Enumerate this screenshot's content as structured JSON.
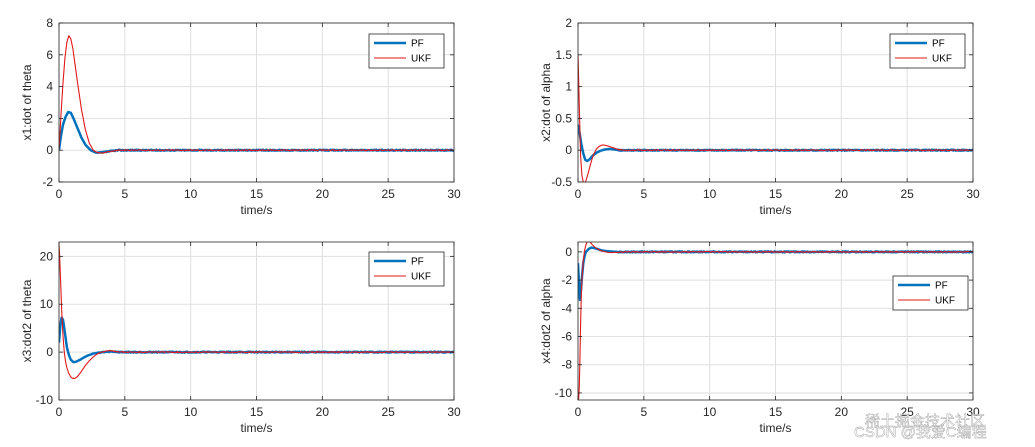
{
  "figure": {
    "watermark": "CSDN @我爱C编程",
    "watermark_secondary": "稀土掘金技术社区"
  },
  "chart_data": [
    {
      "id": "p1",
      "type": "line",
      "title": "",
      "xlabel": "time/s",
      "ylabel": "x1:dot of theta",
      "xlim": [
        0,
        30
      ],
      "ylim": [
        -2,
        8
      ],
      "xticks": [
        0,
        5,
        10,
        15,
        20,
        25,
        30
      ],
      "yticks": [
        -2,
        0,
        2,
        4,
        6,
        8
      ],
      "grid": true,
      "legend_position": "top-right",
      "series": [
        {
          "name": "PF",
          "color": "#0072BD",
          "width": 2.5,
          "x": [
            0,
            0.15,
            0.3,
            0.5,
            0.7,
            0.9,
            1.1,
            1.4,
            1.7,
            2.0,
            2.4,
            2.8,
            3.2,
            3.6,
            4.0,
            4.5,
            5.0,
            6.0,
            8.0,
            10.0,
            15.0,
            20.0,
            25.0,
            30.0
          ],
          "y": [
            0,
            0.9,
            1.6,
            2.1,
            2.4,
            2.35,
            2.0,
            1.4,
            0.8,
            0.35,
            0.0,
            -0.15,
            -0.15,
            -0.1,
            -0.05,
            0,
            0,
            0,
            0,
            0,
            0,
            0,
            0,
            0
          ]
        },
        {
          "name": "UKF",
          "color": "#E2171A",
          "width": 1.1,
          "x": [
            0,
            0.15,
            0.3,
            0.45,
            0.6,
            0.75,
            0.9,
            1.05,
            1.2,
            1.4,
            1.7,
            2.0,
            2.3,
            2.6,
            2.9,
            3.2,
            3.5,
            3.8,
            4.1,
            4.5,
            5.0,
            6.0,
            8.0,
            10.0,
            15.0,
            20.0,
            25.0,
            30.0
          ],
          "y": [
            0,
            2.2,
            4.2,
            5.8,
            6.8,
            7.2,
            7.0,
            6.4,
            5.5,
            4.3,
            2.6,
            1.3,
            0.45,
            0.0,
            -0.15,
            -0.2,
            -0.15,
            -0.1,
            -0.05,
            0,
            0,
            0,
            0,
            0,
            0,
            0,
            0,
            0
          ]
        }
      ]
    },
    {
      "id": "p2",
      "type": "line",
      "title": "",
      "xlabel": "time/s",
      "ylabel": "x2:dot of alpha",
      "xlim": [
        0,
        30
      ],
      "ylim": [
        -0.5,
        2
      ],
      "xticks": [
        0,
        5,
        10,
        15,
        20,
        25,
        30
      ],
      "yticks": [
        -0.5,
        0,
        0.5,
        1,
        1.5,
        2
      ],
      "grid": true,
      "legend_position": "top-right",
      "series": [
        {
          "name": "PF",
          "color": "#0072BD",
          "width": 2.5,
          "x": [
            0,
            0.1,
            0.25,
            0.4,
            0.55,
            0.7,
            0.9,
            1.1,
            1.4,
            1.7,
            2.0,
            2.4,
            2.8,
            3.2,
            3.6,
            4.0,
            5.0,
            8.0,
            12.0,
            16.0,
            20.0,
            25.0,
            30.0
          ],
          "y": [
            0.4,
            0.3,
            0.1,
            -0.05,
            -0.15,
            -0.17,
            -0.14,
            -0.09,
            -0.04,
            -0.01,
            0.01,
            0.02,
            0.01,
            0,
            0,
            0,
            0,
            0,
            0,
            0,
            0,
            0,
            0
          ]
        },
        {
          "name": "UKF",
          "color": "#E2171A",
          "width": 1.1,
          "x": [
            0,
            0.05,
            0.12,
            0.2,
            0.3,
            0.4,
            0.5,
            0.6,
            0.75,
            0.9,
            1.05,
            1.2,
            1.4,
            1.6,
            1.8,
            2.0,
            2.2,
            2.5,
            2.8,
            3.1,
            3.5,
            4.0,
            5.0,
            8.0,
            12.0,
            16.0,
            20.0,
            25.0,
            30.0
          ],
          "y": [
            1.5,
            1.1,
            0.5,
            -0.1,
            -0.4,
            -0.5,
            -0.52,
            -0.48,
            -0.38,
            -0.26,
            -0.15,
            -0.06,
            0.02,
            0.06,
            0.08,
            0.08,
            0.07,
            0.05,
            0.03,
            0.01,
            0,
            0,
            0,
            0,
            0,
            0,
            0,
            0,
            0
          ]
        }
      ]
    },
    {
      "id": "p3",
      "type": "line",
      "title": "",
      "xlabel": "time/s",
      "ylabel": "x3:dot2 of theta",
      "xlim": [
        0,
        30
      ],
      "ylim": [
        -10,
        23
      ],
      "xticks": [
        0,
        5,
        10,
        15,
        20,
        25,
        30
      ],
      "yticks": [
        -10,
        0,
        10,
        20
      ],
      "grid": true,
      "legend_position": "top-right",
      "series": [
        {
          "name": "PF",
          "color": "#0072BD",
          "width": 2.5,
          "x": [
            0,
            0.1,
            0.2,
            0.3,
            0.4,
            0.5,
            0.6,
            0.75,
            0.9,
            1.1,
            1.3,
            1.6,
            1.9,
            2.2,
            2.6,
            3.0,
            3.4,
            3.8,
            4.2,
            4.6,
            5.0,
            6.0,
            8.0,
            10.0,
            15.0,
            20.0,
            25.0,
            30.0
          ],
          "y": [
            2.0,
            5.5,
            7.2,
            6.8,
            5.0,
            3.0,
            1.0,
            -0.6,
            -1.6,
            -2.1,
            -2.0,
            -1.6,
            -1.1,
            -0.7,
            -0.3,
            -0.1,
            0,
            0.1,
            0.1,
            0,
            0,
            0,
            0,
            0,
            0,
            0,
            0,
            0
          ]
        },
        {
          "name": "UKF",
          "color": "#E2171A",
          "width": 1.1,
          "x": [
            0,
            0.05,
            0.12,
            0.2,
            0.3,
            0.4,
            0.5,
            0.6,
            0.75,
            0.9,
            1.05,
            1.2,
            1.4,
            1.6,
            1.8,
            2.0,
            2.3,
            2.6,
            2.9,
            3.2,
            3.5,
            3.8,
            4.1,
            4.5,
            5.0,
            6.0,
            8.0,
            10.0,
            15.0,
            20.0,
            25.0,
            30.0
          ],
          "y": [
            22.5,
            20.0,
            15.0,
            9.0,
            3.5,
            0.0,
            -2.0,
            -3.3,
            -4.5,
            -5.2,
            -5.5,
            -5.5,
            -5.1,
            -4.4,
            -3.6,
            -2.8,
            -1.8,
            -1.0,
            -0.4,
            0.0,
            0.2,
            0.3,
            0.2,
            0.1,
            0,
            0,
            0,
            0,
            0,
            0,
            0,
            0
          ]
        }
      ]
    },
    {
      "id": "p4",
      "type": "line",
      "title": "",
      "xlabel": "time/s",
      "ylabel": "x4:dot2 of alpha",
      "xlim": [
        0,
        30
      ],
      "ylim": [
        -10.5,
        0.7
      ],
      "xticks": [
        0,
        5,
        10,
        15,
        20,
        25,
        30
      ],
      "yticks": [
        -10,
        -8,
        -6,
        -4,
        -2,
        0
      ],
      "grid": true,
      "legend_position": "top-right",
      "series": [
        {
          "name": "PF",
          "color": "#0072BD",
          "width": 2.5,
          "x": [
            0,
            0.05,
            0.1,
            0.15,
            0.2,
            0.3,
            0.4,
            0.5,
            0.6,
            0.8,
            1.0,
            1.2,
            1.5,
            1.8,
            2.2,
            2.6,
            3.0,
            4.0,
            6.0,
            10.0,
            15.0,
            20.0,
            25.0,
            30.0
          ],
          "y": [
            -0.8,
            -1.8,
            -2.9,
            -3.4,
            -3.0,
            -1.8,
            -0.8,
            -0.3,
            0.0,
            0.2,
            0.3,
            0.28,
            0.2,
            0.1,
            0.05,
            0.02,
            0,
            0,
            0,
            0,
            0,
            0,
            0,
            0
          ]
        },
        {
          "name": "UKF",
          "color": "#E2171A",
          "width": 1.1,
          "x": [
            0,
            0.04,
            0.08,
            0.12,
            0.16,
            0.2,
            0.25,
            0.3,
            0.4,
            0.5,
            0.6,
            0.7,
            0.8,
            0.9,
            1.0,
            1.15,
            1.3,
            1.5,
            1.7,
            2.0,
            2.3,
            2.6,
            3.0,
            3.5,
            4.0,
            6.0,
            10.0,
            15.0,
            20.0,
            25.0,
            30.0
          ],
          "y": [
            -10.5,
            -10.5,
            -10.2,
            -8.8,
            -7.0,
            -5.0,
            -3.2,
            -1.9,
            -0.6,
            0.1,
            0.5,
            0.7,
            0.75,
            0.72,
            0.6,
            0.45,
            0.32,
            0.2,
            0.1,
            0.02,
            -0.04,
            -0.05,
            -0.03,
            -0.01,
            0,
            0,
            0,
            0,
            0,
            0,
            0
          ]
        }
      ]
    }
  ]
}
